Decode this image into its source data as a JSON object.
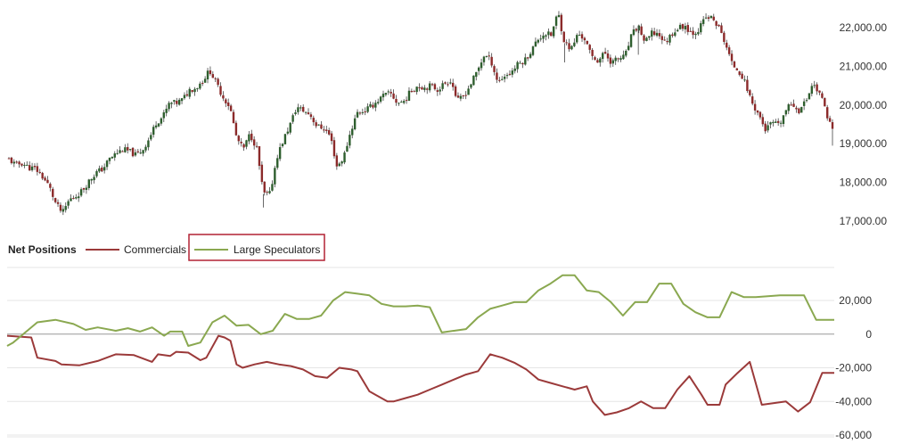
{
  "chart_data": [
    {
      "type": "candlestick",
      "title": "",
      "xlabel": "",
      "ylabel": "",
      "ylim": [
        16800,
        22500
      ],
      "ticks": [
        "22,000.00",
        "21,000.00",
        "20,000.00",
        "19,000.00",
        "18,000.00",
        "17,000.00"
      ],
      "tick_values": [
        22000,
        21000,
        20000,
        19000,
        18000,
        17000
      ],
      "grid": false,
      "colors": {
        "up": "#2e5e2e",
        "down": "#8b2a2a",
        "wick": "#444444"
      },
      "price_path": [
        [
          0,
          18600
        ],
        [
          6,
          18450
        ],
        [
          12,
          18500
        ],
        [
          18,
          18380
        ],
        [
          24,
          18350
        ],
        [
          30,
          18150
        ],
        [
          36,
          17900
        ],
        [
          42,
          17450
        ],
        [
          48,
          17200
        ],
        [
          54,
          17550
        ],
        [
          60,
          17650
        ],
        [
          66,
          17800
        ],
        [
          72,
          18050
        ],
        [
          78,
          18250
        ],
        [
          84,
          18350
        ],
        [
          90,
          18600
        ],
        [
          96,
          18750
        ],
        [
          102,
          18850
        ],
        [
          108,
          18800
        ],
        [
          114,
          18700
        ],
        [
          120,
          18850
        ],
        [
          126,
          19150
        ],
        [
          132,
          19550
        ],
        [
          138,
          19700
        ],
        [
          144,
          20050
        ],
        [
          150,
          20050
        ],
        [
          156,
          20150
        ],
        [
          162,
          20400
        ],
        [
          168,
          20450
        ],
        [
          174,
          20650
        ],
        [
          180,
          20900
        ],
        [
          186,
          20550
        ],
        [
          192,
          20200
        ],
        [
          198,
          19950
        ],
        [
          204,
          19150
        ],
        [
          210,
          18850
        ],
        [
          216,
          19250
        ],
        [
          222,
          18900
        ],
        [
          228,
          17700
        ],
        [
          234,
          17700
        ],
        [
          240,
          18650
        ],
        [
          246,
          19100
        ],
        [
          252,
          19500
        ],
        [
          258,
          19950
        ],
        [
          264,
          19850
        ],
        [
          270,
          19750
        ],
        [
          276,
          19450
        ],
        [
          282,
          19400
        ],
        [
          288,
          19200
        ],
        [
          294,
          18400
        ],
        [
          300,
          18650
        ],
        [
          306,
          19300
        ],
        [
          312,
          19800
        ],
        [
          318,
          19850
        ],
        [
          324,
          19950
        ],
        [
          330,
          20100
        ],
        [
          336,
          20250
        ],
        [
          342,
          20300
        ],
        [
          348,
          20050
        ],
        [
          354,
          20100
        ],
        [
          360,
          20350
        ],
        [
          366,
          20500
        ],
        [
          372,
          20450
        ],
        [
          378,
          20500
        ],
        [
          384,
          20400
        ],
        [
          390,
          20550
        ],
        [
          396,
          20650
        ],
        [
          402,
          20100
        ],
        [
          408,
          20250
        ],
        [
          414,
          20550
        ],
        [
          420,
          20900
        ],
        [
          426,
          21300
        ],
        [
          432,
          21150
        ],
        [
          438,
          20600
        ],
        [
          444,
          20750
        ],
        [
          450,
          20850
        ],
        [
          456,
          21050
        ],
        [
          462,
          21150
        ],
        [
          468,
          21400
        ],
        [
          474,
          21700
        ],
        [
          480,
          21850
        ],
        [
          486,
          21800
        ],
        [
          492,
          22400
        ],
        [
          498,
          21600
        ],
        [
          504,
          21450
        ],
        [
          510,
          21850
        ],
        [
          516,
          21700
        ],
        [
          522,
          21250
        ],
        [
          528,
          21150
        ],
        [
          534,
          21350
        ],
        [
          540,
          21100
        ],
        [
          546,
          21200
        ],
        [
          552,
          21250
        ],
        [
          558,
          21800
        ],
        [
          564,
          22050
        ],
        [
          570,
          21600
        ],
        [
          576,
          21850
        ],
        [
          582,
          21850
        ],
        [
          588,
          21600
        ],
        [
          594,
          21850
        ],
        [
          600,
          22000
        ],
        [
          606,
          22050
        ],
        [
          612,
          21850
        ],
        [
          618,
          21950
        ],
        [
          624,
          22250
        ],
        [
          630,
          22250
        ],
        [
          636,
          22000
        ],
        [
          642,
          21600
        ],
        [
          648,
          21050
        ],
        [
          654,
          20900
        ],
        [
          660,
          20550
        ],
        [
          666,
          20050
        ],
        [
          672,
          19750
        ],
        [
          678,
          19350
        ],
        [
          684,
          19550
        ],
        [
          690,
          19450
        ],
        [
          696,
          19850
        ],
        [
          702,
          20050
        ],
        [
          708,
          19850
        ],
        [
          714,
          20100
        ],
        [
          720,
          20550
        ],
        [
          726,
          20350
        ],
        [
          732,
          19850
        ],
        [
          738,
          19350
        ]
      ],
      "price_path_x_unit": "trading sessions (relative)"
    },
    {
      "type": "line",
      "title": "",
      "xlabel": "",
      "ylabel": "",
      "ylim": [
        -60000,
        38000
      ],
      "ticks": [
        "20,000",
        "0",
        "-20,000",
        "-40,000",
        "-60,000"
      ],
      "tick_values": [
        20000,
        0,
        -20000,
        -40000,
        -60000
      ],
      "grid": true,
      "legend": {
        "title": "Net Positions",
        "placement": "top-left",
        "entries": [
          "Commercials",
          "Large Speculators"
        ],
        "highlighted_entry": "Large Speculators",
        "highlight_color": "#b22234"
      },
      "x_unit": "weeks (relative)",
      "series": [
        {
          "name": "Commercials",
          "color": "#9b3a3a",
          "points": [
            [
              0,
              -1000
            ],
            [
              4,
              -2000
            ],
            [
              5,
              -14000
            ],
            [
              8,
              -16000
            ],
            [
              9,
              -18000
            ],
            [
              12,
              -18500
            ],
            [
              15,
              -16000
            ],
            [
              18,
              -12000
            ],
            [
              21,
              -12500
            ],
            [
              24,
              -16500
            ],
            [
              25,
              -12000
            ],
            [
              27,
              -13000
            ],
            [
              28,
              -10500
            ],
            [
              30,
              -11000
            ],
            [
              32,
              -15500
            ],
            [
              33,
              -14000
            ],
            [
              35,
              -1000
            ],
            [
              36,
              -2000
            ],
            [
              37,
              -4000
            ],
            [
              38,
              -18000
            ],
            [
              39,
              -20000
            ],
            [
              41,
              -18000
            ],
            [
              43,
              -16500
            ],
            [
              45,
              -18000
            ],
            [
              47,
              -19000
            ],
            [
              49,
              -21000
            ],
            [
              51,
              -25000
            ],
            [
              53,
              -26000
            ],
            [
              55,
              -20000
            ],
            [
              57,
              -21000
            ],
            [
              58,
              -22000
            ],
            [
              60,
              -34000
            ],
            [
              61,
              -36000
            ],
            [
              63,
              -40000
            ],
            [
              64,
              -40000
            ],
            [
              66,
              -38000
            ],
            [
              68,
              -36000
            ],
            [
              70,
              -33000
            ],
            [
              72,
              -30000
            ],
            [
              74,
              -27000
            ],
            [
              76,
              -24000
            ],
            [
              78,
              -22000
            ],
            [
              80,
              -12000
            ],
            [
              81,
              -13000
            ],
            [
              82,
              -14000
            ],
            [
              84,
              -17000
            ],
            [
              86,
              -21000
            ],
            [
              88,
              -27000
            ],
            [
              90,
              -29000
            ],
            [
              92,
              -31000
            ],
            [
              94,
              -33000
            ],
            [
              96,
              -31000
            ],
            [
              97,
              -40000
            ],
            [
              99,
              -48000
            ],
            [
              101,
              -46500
            ],
            [
              103,
              -44000
            ],
            [
              105,
              -40000
            ],
            [
              107,
              -44000
            ],
            [
              109,
              -44000
            ],
            [
              111,
              -33000
            ],
            [
              113,
              -25000
            ],
            [
              115,
              -36000
            ],
            [
              116,
              -42000
            ],
            [
              118,
              -42000
            ],
            [
              119,
              -30000
            ],
            [
              121,
              -23000
            ],
            [
              123,
              -16500
            ],
            [
              125,
              -42000
            ],
            [
              127,
              -41000
            ],
            [
              129,
              -40000
            ],
            [
              131,
              -46000
            ],
            [
              133,
              -40500
            ],
            [
              135,
              -23000
            ],
            [
              137,
              -23000
            ]
          ]
        },
        {
          "name": "Large Speculators",
          "color": "#8aa850",
          "points": [
            [
              0,
              -7000
            ],
            [
              1,
              -5000
            ],
            [
              5,
              7000
            ],
            [
              8,
              8500
            ],
            [
              11,
              6000
            ],
            [
              13,
              2500
            ],
            [
              15,
              4000
            ],
            [
              18,
              2000
            ],
            [
              20,
              3500
            ],
            [
              22,
              1500
            ],
            [
              24,
              4000
            ],
            [
              26,
              -1000
            ],
            [
              27,
              1500
            ],
            [
              29,
              1500
            ],
            [
              30,
              -7000
            ],
            [
              32,
              -5000
            ],
            [
              34,
              7000
            ],
            [
              36,
              11000
            ],
            [
              38,
              5000
            ],
            [
              40,
              5500
            ],
            [
              42,
              0
            ],
            [
              44,
              2000
            ],
            [
              46,
              12000
            ],
            [
              48,
              9000
            ],
            [
              50,
              9000
            ],
            [
              52,
              11000
            ],
            [
              54,
              20000
            ],
            [
              56,
              25000
            ],
            [
              58,
              24000
            ],
            [
              60,
              23000
            ],
            [
              62,
              18000
            ],
            [
              64,
              16500
            ],
            [
              66,
              16500
            ],
            [
              68,
              17000
            ],
            [
              70,
              16000
            ],
            [
              72,
              1000
            ],
            [
              74,
              2000
            ],
            [
              76,
              3000
            ],
            [
              78,
              10000
            ],
            [
              80,
              15000
            ],
            [
              82,
              17000
            ],
            [
              84,
              19000
            ],
            [
              86,
              19000
            ],
            [
              88,
              26000
            ],
            [
              90,
              30000
            ],
            [
              92,
              35000
            ],
            [
              94,
              35000
            ],
            [
              96,
              26000
            ],
            [
              98,
              25000
            ],
            [
              100,
              19000
            ],
            [
              102,
              11000
            ],
            [
              104,
              19000
            ],
            [
              106,
              19000
            ],
            [
              108,
              30000
            ],
            [
              110,
              30000
            ],
            [
              112,
              18000
            ],
            [
              114,
              13000
            ],
            [
              116,
              10000
            ],
            [
              118,
              10000
            ],
            [
              120,
              25000
            ],
            [
              122,
              22000
            ],
            [
              124,
              22000
            ],
            [
              126,
              22500
            ],
            [
              128,
              23000
            ],
            [
              130,
              23000
            ],
            [
              132,
              23000
            ],
            [
              134,
              8500
            ],
            [
              137,
              8500
            ]
          ]
        }
      ]
    }
  ]
}
